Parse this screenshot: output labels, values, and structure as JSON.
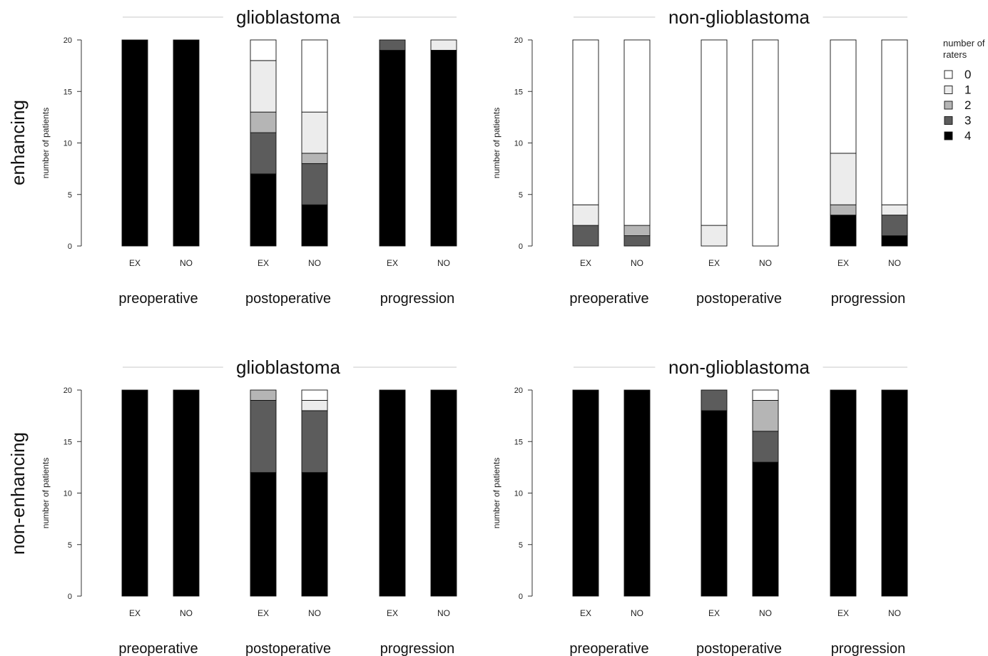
{
  "figure": {
    "row_labels": [
      "enhancing",
      "non-enhancing"
    ],
    "legend": {
      "title": "number of raters",
      "title_lines": [
        "number of",
        "raters"
      ],
      "items": [
        {
          "label": "0",
          "color": "#ffffff"
        },
        {
          "label": "1",
          "color": "#ececec"
        },
        {
          "label": "2",
          "color": "#b5b5b5"
        },
        {
          "label": "3",
          "color": "#5c5c5c"
        },
        {
          "label": "4",
          "color": "#000000"
        }
      ]
    }
  },
  "chart_data": [
    {
      "type": "bar",
      "stacked": true,
      "title": "glioblastoma",
      "row": "enhancing",
      "ylabel": "number of patients",
      "ylim": [
        0,
        20
      ],
      "yticks": [
        0,
        5,
        10,
        15,
        20
      ],
      "groups": [
        "preoperative",
        "postoperative",
        "progression"
      ],
      "categories": [
        "EX",
        "NO",
        "EX",
        "NO",
        "EX",
        "NO"
      ],
      "series": [
        {
          "name": "4",
          "values": [
            20,
            20,
            7,
            4,
            19,
            19
          ]
        },
        {
          "name": "3",
          "values": [
            0,
            0,
            4,
            4,
            1,
            0
          ]
        },
        {
          "name": "2",
          "values": [
            0,
            0,
            2,
            1,
            0,
            0
          ]
        },
        {
          "name": "1",
          "values": [
            0,
            0,
            5,
            4,
            0,
            1
          ]
        },
        {
          "name": "0",
          "values": [
            0,
            0,
            2,
            7,
            0,
            0
          ]
        }
      ]
    },
    {
      "type": "bar",
      "stacked": true,
      "title": "non-glioblastoma",
      "row": "enhancing",
      "ylabel": "number of patients",
      "ylim": [
        0,
        20
      ],
      "yticks": [
        0,
        5,
        10,
        15,
        20
      ],
      "groups": [
        "preoperative",
        "postoperative",
        "progression"
      ],
      "categories": [
        "EX",
        "NO",
        "EX",
        "NO",
        "EX",
        "NO"
      ],
      "series": [
        {
          "name": "4",
          "values": [
            0,
            0,
            0,
            0,
            3,
            1
          ]
        },
        {
          "name": "3",
          "values": [
            2,
            1,
            0,
            0,
            0,
            2
          ]
        },
        {
          "name": "2",
          "values": [
            0,
            1,
            0,
            0,
            1,
            0
          ]
        },
        {
          "name": "1",
          "values": [
            2,
            0,
            2,
            0,
            5,
            1
          ]
        },
        {
          "name": "0",
          "values": [
            16,
            18,
            18,
            20,
            11,
            16
          ]
        }
      ]
    },
    {
      "type": "bar",
      "stacked": true,
      "title": "glioblastoma",
      "row": "non-enhancing",
      "ylabel": "number of patients",
      "ylim": [
        0,
        20
      ],
      "yticks": [
        0,
        5,
        10,
        15,
        20
      ],
      "groups": [
        "preoperative",
        "postoperative",
        "progression"
      ],
      "categories": [
        "EX",
        "NO",
        "EX",
        "NO",
        "EX",
        "NO"
      ],
      "series": [
        {
          "name": "4",
          "values": [
            20,
            20,
            12,
            12,
            20,
            20
          ]
        },
        {
          "name": "3",
          "values": [
            0,
            0,
            7,
            6,
            0,
            0
          ]
        },
        {
          "name": "2",
          "values": [
            0,
            0,
            1,
            0,
            0,
            0
          ]
        },
        {
          "name": "1",
          "values": [
            0,
            0,
            0,
            1,
            0,
            0
          ]
        },
        {
          "name": "0",
          "values": [
            0,
            0,
            0,
            1,
            0,
            0
          ]
        }
      ]
    },
    {
      "type": "bar",
      "stacked": true,
      "title": "non-glioblastoma",
      "row": "non-enhancing",
      "ylabel": "number of patients",
      "ylim": [
        0,
        20
      ],
      "yticks": [
        0,
        5,
        10,
        15,
        20
      ],
      "groups": [
        "preoperative",
        "postoperative",
        "progression"
      ],
      "categories": [
        "EX",
        "NO",
        "EX",
        "NO",
        "EX",
        "NO"
      ],
      "series": [
        {
          "name": "4",
          "values": [
            20,
            20,
            18,
            13,
            20,
            20
          ]
        },
        {
          "name": "3",
          "values": [
            0,
            0,
            2,
            3,
            0,
            0
          ]
        },
        {
          "name": "2",
          "values": [
            0,
            0,
            0,
            3,
            0,
            0
          ]
        },
        {
          "name": "1",
          "values": [
            0,
            0,
            0,
            0,
            0,
            0
          ]
        },
        {
          "name": "0",
          "values": [
            0,
            0,
            0,
            1,
            0,
            0
          ]
        }
      ]
    }
  ]
}
